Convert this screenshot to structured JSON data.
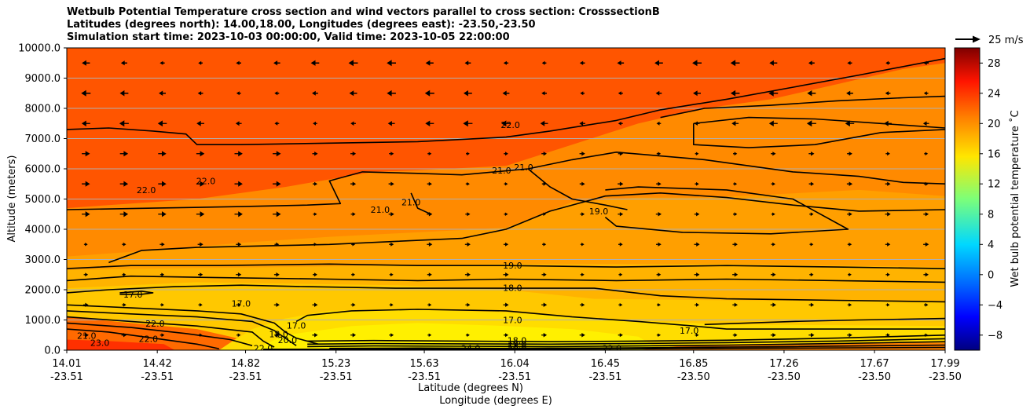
{
  "chart_data": {
    "type": "contour",
    "title_lines": [
      "Wetbulb Potential Temperature cross section and wind vectors parallel to cross section: CrosssectionB",
      "Latitudes (degrees north): 14.00,18.00, Longitudes (degrees east): -23.50,-23.50",
      "Simulation start time: 2023-10-03 00:00:00, Valid time: 2023-10-05 22:00:00"
    ],
    "ylabel": "Altitude (meters)",
    "xlabel_lat": "Latitude (degrees N)",
    "xlabel_lon": "Longitude (degrees E)",
    "ylim": [
      0,
      10000
    ],
    "yticks": [
      "0.0",
      "1000.0",
      "2000.0",
      "3000.0",
      "4000.0",
      "5000.0",
      "6000.0",
      "7000.0",
      "8000.0",
      "9000.0",
      "10000.0"
    ],
    "xlim": [
      14.01,
      17.99
    ],
    "xticks": [
      {
        "lat": "14.01",
        "lon": "-23.51"
      },
      {
        "lat": "14.42",
        "lon": "-23.51"
      },
      {
        "lat": "14.82",
        "lon": "-23.51"
      },
      {
        "lat": "15.23",
        "lon": "-23.51"
      },
      {
        "lat": "15.63",
        "lon": "-23.51"
      },
      {
        "lat": "16.04",
        "lon": "-23.51"
      },
      {
        "lat": "16.45",
        "lon": "-23.51"
      },
      {
        "lat": "16.85",
        "lon": "-23.50"
      },
      {
        "lat": "17.26",
        "lon": "-23.50"
      },
      {
        "lat": "17.67",
        "lon": "-23.50"
      },
      {
        "lat": "17.99",
        "lon": "-23.50"
      }
    ],
    "colorbar": {
      "label": "Wet bulb potential temperature ˚C",
      "range": [
        -10,
        30
      ],
      "ticks": [
        "−8",
        "−4",
        "0",
        "4",
        "8",
        "12",
        "16",
        "20",
        "24",
        "28"
      ]
    },
    "quiver_key": "25 m/s",
    "contour_labels": [
      {
        "text": "22.0",
        "lat": 16.02,
        "alt": 7450
      },
      {
        "text": "21.0",
        "lat": 15.98,
        "alt": 5950
      },
      {
        "text": "21.0",
        "lat": 16.08,
        "alt": 6050
      },
      {
        "text": "22.0",
        "lat": 14.37,
        "alt": 5300
      },
      {
        "text": "22.0",
        "lat": 14.64,
        "alt": 5600
      },
      {
        "text": "21.0",
        "lat": 15.43,
        "alt": 4650
      },
      {
        "text": "21.0",
        "lat": 15.57,
        "alt": 4900
      },
      {
        "text": "19.0",
        "lat": 16.42,
        "alt": 4600
      },
      {
        "text": "19.0",
        "lat": 16.03,
        "alt": 2800
      },
      {
        "text": "18.0",
        "lat": 16.03,
        "alt": 2070
      },
      {
        "text": "17.0",
        "lat": 16.03,
        "alt": 1000
      },
      {
        "text": "17.0",
        "lat": 14.31,
        "alt": 1850
      },
      {
        "text": "17.0",
        "lat": 14.8,
        "alt": 1550
      },
      {
        "text": "17.0",
        "lat": 15.05,
        "alt": 820
      },
      {
        "text": "22.0",
        "lat": 14.41,
        "alt": 880
      },
      {
        "text": "17.0",
        "lat": 16.83,
        "alt": 650
      },
      {
        "text": "18.0",
        "lat": 16.05,
        "alt": 320
      },
      {
        "text": "19.0",
        "lat": 16.05,
        "alt": 190
      },
      {
        "text": "20.0",
        "lat": 16.05,
        "alt": 70
      },
      {
        "text": "21.0",
        "lat": 14.1,
        "alt": 480
      },
      {
        "text": "23.0",
        "lat": 14.16,
        "alt": 250
      },
      {
        "text": "22.0",
        "lat": 14.38,
        "alt": 380
      },
      {
        "text": "18.0",
        "lat": 14.97,
        "alt": 530
      },
      {
        "text": "20.0",
        "lat": 15.01,
        "alt": 340
      },
      {
        "text": "22.0",
        "lat": 14.9,
        "alt": 70
      },
      {
        "text": "24.0",
        "lat": 15.84,
        "alt": 70
      },
      {
        "text": "22.0",
        "lat": 16.48,
        "alt": 70
      }
    ]
  }
}
